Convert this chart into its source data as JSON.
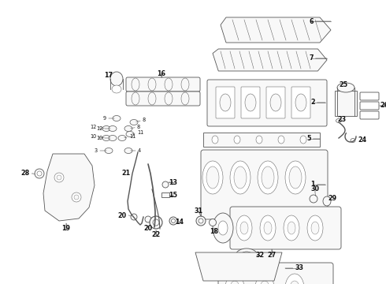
{
  "bg_color": "#ffffff",
  "fig_width": 4.9,
  "fig_height": 3.6,
  "dpi": 100,
  "line_color": "#555555",
  "label_color": "#111111",
  "fc_part": "#f8f8f8",
  "fc_white": "#ffffff",
  "lw_main": 0.6,
  "lw_detail": 0.35,
  "font_size": 5.2,
  "font_size_bold": 5.8
}
